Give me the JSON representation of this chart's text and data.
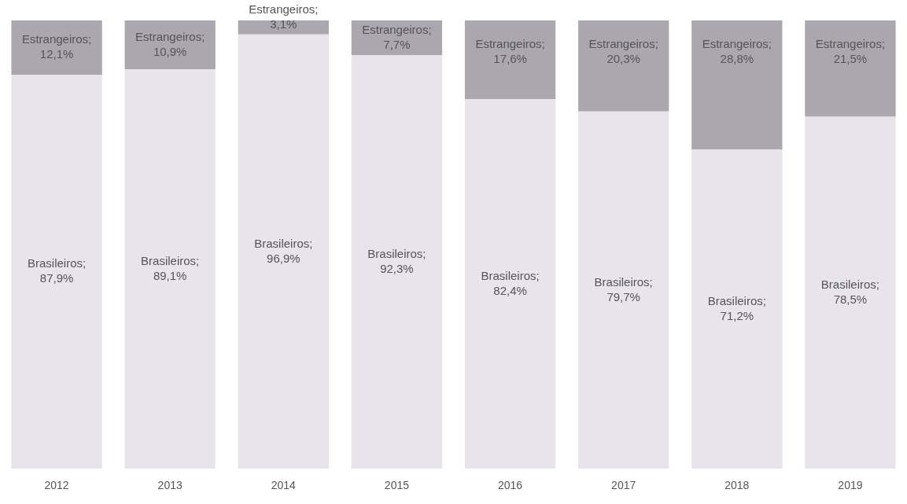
{
  "chart_data": {
    "type": "bar",
    "stacked": true,
    "legend": false,
    "grid": false,
    "categories": [
      "2012",
      "2013",
      "2014",
      "2015",
      "2016",
      "2017",
      "2018",
      "2019"
    ],
    "series": [
      {
        "name": "Brasileiros;",
        "color": "#e7e4ec",
        "values": [
          87.9,
          89.1,
          96.9,
          92.3,
          82.4,
          79.7,
          71.2,
          78.5
        ],
        "value_labels": [
          "87,9%",
          "89,1%",
          "96,9%",
          "92,3%",
          "82,4%",
          "79,7%",
          "71,2%",
          "78,5%"
        ]
      },
      {
        "name": "Estrangeiros;",
        "color": "#aaa7ae",
        "values": [
          12.1,
          10.9,
          3.1,
          7.7,
          17.6,
          20.3,
          28.8,
          21.5
        ],
        "value_labels": [
          "12,1%",
          "10,9%",
          "3,1%",
          "7,7%",
          "17,6%",
          "20,3%",
          "28,8%",
          "21,5%"
        ]
      }
    ]
  }
}
